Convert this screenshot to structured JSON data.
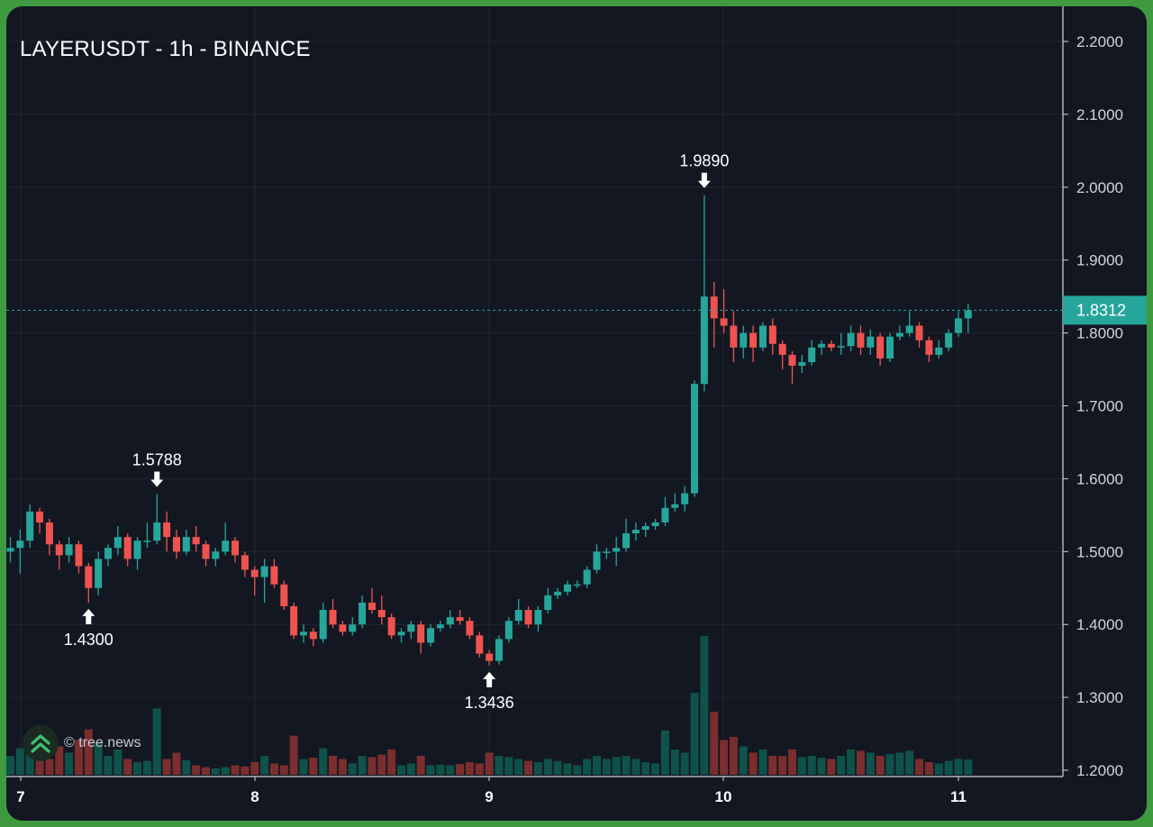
{
  "title": "LAYERUSDT - 1h - BINANCE",
  "watermark": "© tree.news",
  "colors": {
    "background": "#131722",
    "up": "#26a69a",
    "down": "#ef5350",
    "volume_up": "#0f5249",
    "volume_down": "#7a2e2e",
    "grid": "#232733",
    "price_line": "#26a69a",
    "frame": "#3f9a3f"
  },
  "chart_data": {
    "type": "candlestick",
    "symbol": "LAYERUSDT",
    "interval": "1h",
    "exchange": "BINANCE",
    "x_tick_labels": [
      "7",
      "8",
      "9",
      "10",
      "11"
    ],
    "y_tick_labels": [
      "2.2000",
      "2.1000",
      "2.0000",
      "1.9000",
      "1.8000",
      "1.7000",
      "1.6000",
      "1.5000",
      "1.4000",
      "1.3000",
      "1.2000"
    ],
    "ylim": [
      1.2,
      2.2
    ],
    "grid": true,
    "current_price": "1.8312",
    "annotations": [
      {
        "label": "1.9890",
        "value": 1.989,
        "kind": "high"
      },
      {
        "label": "1.5788",
        "value": 1.5788,
        "kind": "high"
      },
      {
        "label": "1.4300",
        "value": 1.43,
        "kind": "low"
      },
      {
        "label": "1.3436",
        "value": 1.3436,
        "kind": "low"
      }
    ],
    "candles": [
      [
        1.5,
        1.505,
        1.52,
        1.485,
        0.3
      ],
      [
        1.505,
        1.515,
        1.53,
        1.47,
        0.42
      ],
      [
        1.515,
        1.555,
        1.565,
        1.505,
        0.38
      ],
      [
        1.555,
        1.54,
        1.56,
        1.525,
        0.3
      ],
      [
        1.54,
        1.51,
        1.545,
        1.495,
        0.25
      ],
      [
        1.51,
        1.495,
        1.515,
        1.475,
        0.45
      ],
      [
        1.495,
        1.51,
        1.52,
        1.485,
        0.35
      ],
      [
        1.51,
        1.48,
        1.515,
        1.47,
        0.55
      ],
      [
        1.48,
        1.45,
        1.485,
        1.43,
        0.72
      ],
      [
        1.45,
        1.49,
        1.5,
        1.44,
        0.5
      ],
      [
        1.49,
        1.505,
        1.51,
        1.48,
        0.3
      ],
      [
        1.505,
        1.52,
        1.535,
        1.495,
        0.4
      ],
      [
        1.52,
        1.49,
        1.525,
        1.48,
        0.25
      ],
      [
        1.49,
        1.515,
        1.52,
        1.475,
        0.2
      ],
      [
        1.515,
        1.515,
        1.54,
        1.505,
        0.22
      ],
      [
        1.515,
        1.54,
        1.579,
        1.51,
        1.05
      ],
      [
        1.54,
        1.52,
        1.555,
        1.5,
        0.25
      ],
      [
        1.52,
        1.5,
        1.53,
        1.49,
        0.35
      ],
      [
        1.5,
        1.52,
        1.53,
        1.495,
        0.23
      ],
      [
        1.52,
        1.51,
        1.535,
        1.5,
        0.15
      ],
      [
        1.51,
        1.49,
        1.515,
        1.48,
        0.12
      ],
      [
        1.49,
        1.5,
        1.505,
        1.48,
        0.1
      ],
      [
        1.5,
        1.515,
        1.54,
        1.495,
        0.12
      ],
      [
        1.515,
        1.495,
        1.52,
        1.485,
        0.15
      ],
      [
        1.495,
        1.475,
        1.5,
        1.465,
        0.13
      ],
      [
        1.475,
        1.465,
        1.48,
        1.44,
        0.2
      ],
      [
        1.465,
        1.48,
        1.49,
        1.43,
        0.3
      ],
      [
        1.48,
        1.455,
        1.49,
        1.45,
        0.18
      ],
      [
        1.455,
        1.425,
        1.46,
        1.42,
        0.15
      ],
      [
        1.425,
        1.385,
        1.43,
        1.38,
        0.62
      ],
      [
        1.385,
        1.39,
        1.4,
        1.375,
        0.25
      ],
      [
        1.39,
        1.38,
        1.395,
        1.37,
        0.27
      ],
      [
        1.38,
        1.42,
        1.43,
        1.375,
        0.42
      ],
      [
        1.42,
        1.4,
        1.435,
        1.395,
        0.3
      ],
      [
        1.4,
        1.39,
        1.405,
        1.385,
        0.25
      ],
      [
        1.39,
        1.4,
        1.41,
        1.385,
        0.18
      ],
      [
        1.4,
        1.43,
        1.44,
        1.395,
        0.3
      ],
      [
        1.43,
        1.42,
        1.45,
        1.415,
        0.28
      ],
      [
        1.42,
        1.41,
        1.44,
        1.4,
        0.32
      ],
      [
        1.41,
        1.385,
        1.415,
        1.38,
        0.4
      ],
      [
        1.385,
        1.39,
        1.395,
        1.375,
        0.15
      ],
      [
        1.39,
        1.4,
        1.405,
        1.38,
        0.18
      ],
      [
        1.4,
        1.375,
        1.405,
        1.36,
        0.3
      ],
      [
        1.375,
        1.395,
        1.4,
        1.37,
        0.15
      ],
      [
        1.395,
        1.4,
        1.405,
        1.39,
        0.16
      ],
      [
        1.4,
        1.41,
        1.42,
        1.395,
        0.15
      ],
      [
        1.41,
        1.405,
        1.42,
        1.4,
        0.17
      ],
      [
        1.405,
        1.385,
        1.41,
        1.38,
        0.2
      ],
      [
        1.385,
        1.36,
        1.39,
        1.355,
        0.18
      ],
      [
        1.36,
        1.35,
        1.365,
        1.344,
        0.35
      ],
      [
        1.35,
        1.38,
        1.385,
        1.345,
        0.3
      ],
      [
        1.38,
        1.405,
        1.41,
        1.375,
        0.28
      ],
      [
        1.405,
        1.42,
        1.435,
        1.4,
        0.25
      ],
      [
        1.42,
        1.4,
        1.425,
        1.395,
        0.22
      ],
      [
        1.4,
        1.42,
        1.425,
        1.39,
        0.2
      ],
      [
        1.42,
        1.44,
        1.45,
        1.415,
        0.25
      ],
      [
        1.44,
        1.445,
        1.45,
        1.435,
        0.22
      ],
      [
        1.445,
        1.455,
        1.46,
        1.44,
        0.18
      ],
      [
        1.455,
        1.455,
        1.46,
        1.45,
        0.15
      ],
      [
        1.455,
        1.475,
        1.48,
        1.45,
        0.25
      ],
      [
        1.475,
        1.5,
        1.51,
        1.47,
        0.3
      ],
      [
        1.5,
        1.5,
        1.505,
        1.49,
        0.25
      ],
      [
        1.5,
        1.505,
        1.52,
        1.48,
        0.28
      ],
      [
        1.505,
        1.525,
        1.545,
        1.5,
        0.3
      ],
      [
        1.525,
        1.53,
        1.54,
        1.515,
        0.25
      ],
      [
        1.53,
        1.535,
        1.54,
        1.52,
        0.2
      ],
      [
        1.535,
        1.54,
        1.545,
        1.53,
        0.18
      ],
      [
        1.54,
        1.56,
        1.575,
        1.535,
        0.7
      ],
      [
        1.56,
        1.565,
        1.58,
        1.555,
        0.4
      ],
      [
        1.565,
        1.58,
        1.59,
        1.555,
        0.35
      ],
      [
        1.58,
        1.73,
        1.735,
        1.575,
        1.3
      ],
      [
        1.73,
        1.85,
        1.989,
        1.72,
        2.2
      ],
      [
        1.85,
        1.82,
        1.87,
        1.78,
        1.0
      ],
      [
        1.82,
        1.81,
        1.86,
        1.8,
        0.55
      ],
      [
        1.81,
        1.78,
        1.83,
        1.76,
        0.6
      ],
      [
        1.78,
        1.8,
        1.81,
        1.765,
        0.45
      ],
      [
        1.8,
        1.78,
        1.81,
        1.76,
        0.35
      ],
      [
        1.78,
        1.81,
        1.815,
        1.775,
        0.4
      ],
      [
        1.81,
        1.785,
        1.82,
        1.77,
        0.3
      ],
      [
        1.785,
        1.77,
        1.79,
        1.75,
        0.3
      ],
      [
        1.77,
        1.755,
        1.775,
        1.73,
        0.4
      ],
      [
        1.755,
        1.76,
        1.77,
        1.745,
        0.28
      ],
      [
        1.76,
        1.78,
        1.79,
        1.755,
        0.3
      ],
      [
        1.78,
        1.785,
        1.79,
        1.77,
        0.27
      ],
      [
        1.785,
        1.78,
        1.79,
        1.775,
        0.25
      ],
      [
        1.78,
        1.782,
        1.8,
        1.77,
        0.3
      ],
      [
        1.782,
        1.8,
        1.81,
        1.775,
        0.4
      ],
      [
        1.8,
        1.78,
        1.81,
        1.77,
        0.38
      ],
      [
        1.78,
        1.795,
        1.805,
        1.77,
        0.35
      ],
      [
        1.795,
        1.765,
        1.8,
        1.755,
        0.3
      ],
      [
        1.765,
        1.795,
        1.8,
        1.76,
        0.33
      ],
      [
        1.795,
        1.8,
        1.81,
        1.79,
        0.35
      ],
      [
        1.8,
        1.81,
        1.83,
        1.795,
        0.38
      ],
      [
        1.81,
        1.79,
        1.815,
        1.78,
        0.25
      ],
      [
        1.79,
        1.77,
        1.795,
        1.76,
        0.2
      ],
      [
        1.77,
        1.78,
        1.79,
        1.765,
        0.18
      ],
      [
        1.78,
        1.8,
        1.805,
        1.775,
        0.22
      ],
      [
        1.8,
        1.82,
        1.83,
        1.795,
        0.25
      ],
      [
        1.82,
        1.831,
        1.84,
        1.8,
        0.24
      ]
    ]
  }
}
